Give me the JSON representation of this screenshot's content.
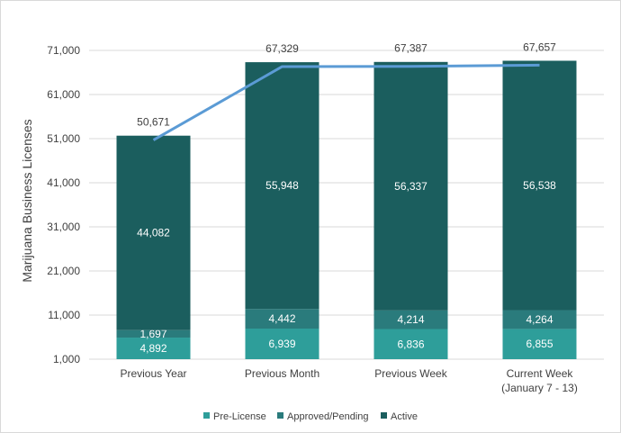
{
  "chart_data": {
    "type": "bar",
    "stacked": true,
    "categories": [
      [
        "Previous Year"
      ],
      [
        "Previous Month"
      ],
      [
        "Previous Week"
      ],
      [
        "Current Week",
        "(January 7 - 13)"
      ]
    ],
    "series": [
      {
        "name": "Pre-License",
        "color": "#2e9e9a",
        "values": [
          4892,
          6939,
          6836,
          6855
        ]
      },
      {
        "name": "Approved/Pending",
        "color": "#2a7b7c",
        "values": [
          1697,
          4442,
          4214,
          4264
        ]
      },
      {
        "name": "Active",
        "color": "#1b5e5e",
        "values": [
          44082,
          55948,
          56337,
          56538
        ]
      }
    ],
    "totals_line": {
      "color": "#5b9bd5",
      "values": [
        50671,
        67329,
        67387,
        67657
      ]
    },
    "ylabel": "Marijuana Business Licenses",
    "xlabel": "",
    "ylim": [
      1000,
      71000
    ],
    "yticks": [
      "1,000",
      "11,000",
      "21,000",
      "31,000",
      "41,000",
      "51,000",
      "61,000",
      "71,000"
    ],
    "grid": true,
    "legend_position": "bottom"
  }
}
